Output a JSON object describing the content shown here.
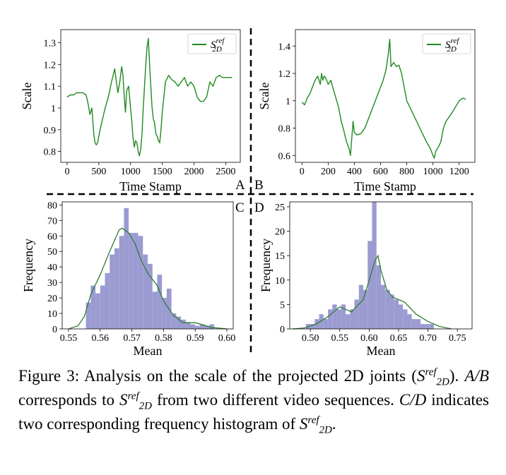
{
  "figure": {
    "panel_labels": [
      "A",
      "B",
      "C",
      "D"
    ],
    "legend": {
      "symbol": "S",
      "sup": "ref",
      "sub": "2D"
    },
    "colors": {
      "line": "#1f8a1f",
      "bar": "#9b9bd2",
      "kde": "#2e7d32"
    }
  },
  "caption": {
    "label": "Figure 3:",
    "p1": " Analysis on the scale of the projected 2D joints (",
    "sym": "S",
    "sup": "ref",
    "sub": "2D",
    "p2": "). ",
    "ab": "A/B",
    "p3": " corresponds to ",
    "p4": " from two different video sequences. ",
    "cd": "C/D",
    "p5": " indicates two corresponding frequency histogram of ",
    "p6": "."
  },
  "chart_data": [
    {
      "panel": "A",
      "type": "line",
      "xlabel": "Time Stamp",
      "ylabel": "Scale",
      "xlim": [
        -100,
        2730
      ],
      "ylim": [
        0.75,
        1.36
      ],
      "xticks": [
        0,
        500,
        1000,
        1500,
        2000,
        2500
      ],
      "yticks": [
        0.8,
        0.9,
        1.0,
        1.1,
        1.2,
        1.3
      ],
      "x": [
        0,
        50,
        100,
        150,
        200,
        250,
        300,
        330,
        360,
        390,
        420,
        440,
        460,
        480,
        520,
        560,
        600,
        650,
        700,
        750,
        800,
        830,
        860,
        880,
        900,
        920,
        940,
        970,
        1000,
        1020,
        1040,
        1060,
        1080,
        1100,
        1120,
        1140,
        1160,
        1180,
        1200,
        1220,
        1240,
        1260,
        1280,
        1300,
        1320,
        1340,
        1360,
        1380,
        1400,
        1420,
        1440,
        1460,
        1480,
        1500,
        1550,
        1600,
        1650,
        1700,
        1750,
        1800,
        1850,
        1900,
        1950,
        2000,
        2050,
        2100,
        2150,
        2200,
        2250,
        2300,
        2350,
        2400,
        2450,
        2500,
        2550,
        2600
      ],
      "y": [
        1.05,
        1.06,
        1.06,
        1.07,
        1.07,
        1.07,
        1.06,
        1.02,
        0.97,
        1.0,
        0.88,
        0.84,
        0.83,
        0.84,
        0.9,
        0.95,
        1.0,
        1.05,
        1.12,
        1.18,
        1.07,
        1.12,
        1.19,
        1.15,
        1.05,
        0.98,
        1.08,
        1.1,
        1.0,
        0.94,
        0.86,
        0.82,
        0.85,
        0.84,
        0.8,
        0.78,
        0.81,
        0.88,
        1.0,
        1.1,
        1.2,
        1.28,
        1.32,
        1.2,
        1.1,
        1.0,
        0.95,
        0.93,
        0.88,
        0.87,
        0.85,
        0.84,
        0.9,
        0.98,
        1.12,
        1.15,
        1.13,
        1.12,
        1.1,
        1.12,
        1.14,
        1.1,
        1.12,
        1.1,
        1.05,
        1.03,
        1.03,
        1.05,
        1.12,
        1.1,
        1.14,
        1.15,
        1.14,
        1.14,
        1.14,
        1.14
      ],
      "legend_position": "top-right"
    },
    {
      "panel": "B",
      "type": "line",
      "xlabel": "Time Stamp",
      "ylabel": "Scale",
      "xlim": [
        -50,
        1320
      ],
      "ylim": [
        0.55,
        1.52
      ],
      "xticks": [
        0,
        200,
        400,
        600,
        800,
        1000,
        1200
      ],
      "yticks": [
        0.6,
        0.8,
        1.0,
        1.2,
        1.4
      ],
      "x": [
        0,
        20,
        40,
        60,
        80,
        100,
        120,
        140,
        150,
        160,
        170,
        180,
        200,
        220,
        250,
        280,
        300,
        320,
        340,
        360,
        370,
        380,
        390,
        400,
        420,
        450,
        480,
        520,
        560,
        600,
        620,
        640,
        650,
        660,
        670,
        680,
        700,
        720,
        740,
        760,
        780,
        800,
        850,
        900,
        950,
        980,
        1000,
        1010,
        1020,
        1040,
        1060,
        1080,
        1100,
        1150,
        1200,
        1230,
        1250
      ],
      "y": [
        0.99,
        0.97,
        1.02,
        1.05,
        1.1,
        1.15,
        1.18,
        1.12,
        1.2,
        1.15,
        1.18,
        1.17,
        1.12,
        1.15,
        1.05,
        0.95,
        0.85,
        0.78,
        0.7,
        0.65,
        0.6,
        0.72,
        0.85,
        0.77,
        0.75,
        0.76,
        0.8,
        0.9,
        1.0,
        1.1,
        1.15,
        1.22,
        1.28,
        1.35,
        1.45,
        1.25,
        1.28,
        1.25,
        1.26,
        1.2,
        1.1,
        1.0,
        0.9,
        0.8,
        0.7,
        0.65,
        0.6,
        0.58,
        0.63,
        0.66,
        0.7,
        0.8,
        0.85,
        0.92,
        1.0,
        1.02,
        1.01
      ],
      "legend_position": "top-right"
    },
    {
      "panel": "C",
      "type": "bar",
      "xlabel": "Mean",
      "ylabel": "Frequency",
      "xlim": [
        0.548,
        0.602
      ],
      "ylim": [
        0,
        82
      ],
      "xticks": [
        0.55,
        0.56,
        0.57,
        0.58,
        0.59,
        0.6
      ],
      "yticks": [
        0,
        10,
        20,
        30,
        40,
        50,
        60,
        70,
        80
      ],
      "bin_start": 0.5555,
      "bin_width": 0.0015,
      "values": [
        17,
        28,
        23,
        28,
        36,
        48,
        52,
        60,
        78,
        62,
        62,
        60,
        48,
        42,
        24,
        35,
        20,
        26,
        10,
        8,
        6,
        4,
        3,
        2,
        3,
        2,
        3
      ],
      "kde_x": [
        0.55,
        0.553,
        0.555,
        0.557,
        0.56,
        0.563,
        0.566,
        0.567,
        0.569,
        0.571,
        0.573,
        0.575,
        0.578,
        0.58,
        0.583,
        0.586,
        0.59,
        0.595,
        0.6
      ],
      "kde_y": [
        0,
        2,
        8,
        22,
        35,
        50,
        64,
        65,
        62,
        55,
        44,
        36,
        28,
        18,
        9,
        4,
        4,
        1,
        0
      ]
    },
    {
      "panel": "D",
      "type": "bar",
      "xlabel": "Mean",
      "ylabel": "Frequency",
      "xlim": [
        0.465,
        0.775
      ],
      "ylim": [
        0,
        26
      ],
      "xticks": [
        0.5,
        0.55,
        0.6,
        0.65,
        0.7,
        0.75
      ],
      "yticks": [
        0,
        5,
        10,
        15,
        20,
        25
      ],
      "bin_start": 0.485,
      "bin_width": 0.0075,
      "values": [
        0,
        1,
        1,
        2,
        3,
        2,
        4,
        5,
        4,
        5,
        3,
        4,
        6,
        9,
        8,
        18,
        26,
        13,
        9,
        8,
        7,
        6,
        5,
        4,
        3,
        2,
        2,
        1,
        1,
        1
      ],
      "kde_x": [
        0.47,
        0.49,
        0.51,
        0.53,
        0.55,
        0.57,
        0.59,
        0.6,
        0.61,
        0.615,
        0.62,
        0.63,
        0.64,
        0.66,
        0.68,
        0.7,
        0.72,
        0.74
      ],
      "kde_y": [
        0,
        0.2,
        1,
        2.5,
        4.5,
        3.5,
        6,
        10,
        14,
        15,
        12,
        8,
        6.5,
        5.5,
        3,
        1.5,
        0.5,
        0
      ]
    }
  ]
}
